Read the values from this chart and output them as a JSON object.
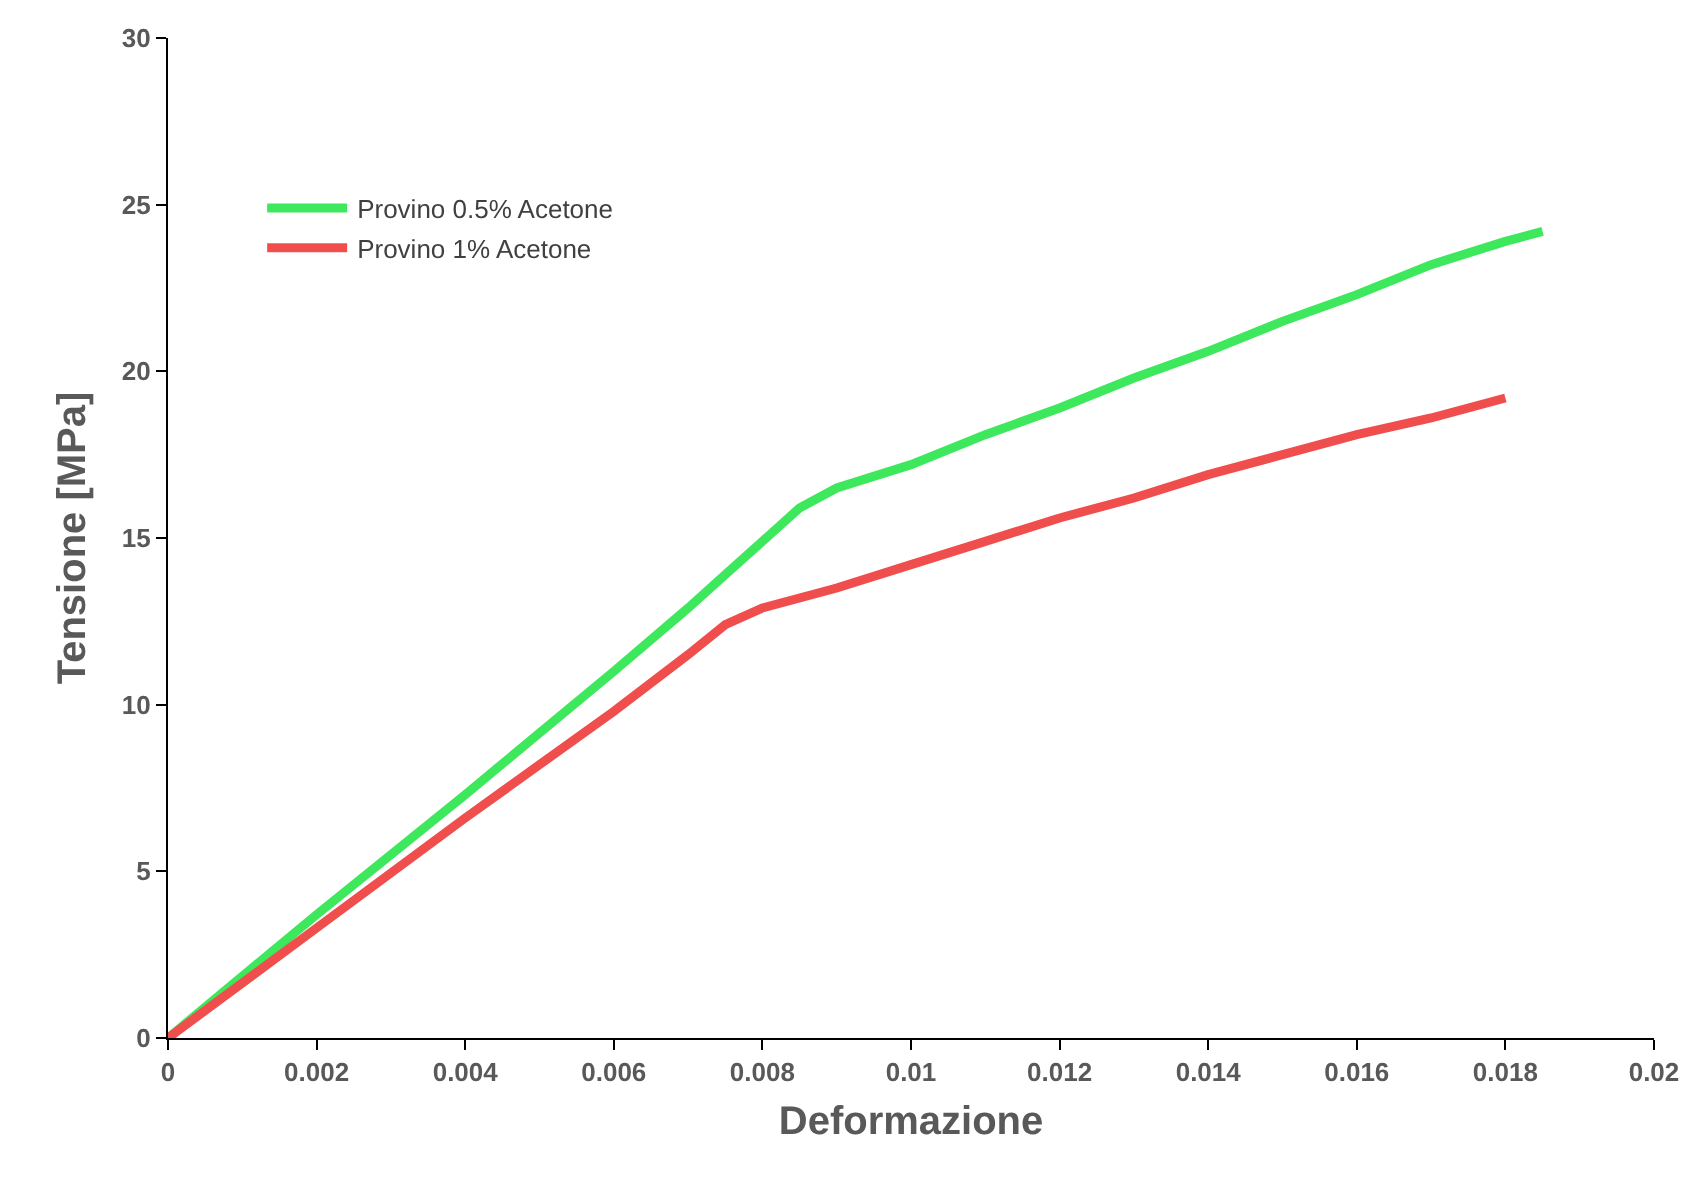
{
  "chart_data": {
    "type": "line",
    "xlabel": "Deformazione",
    "ylabel": "Tensione [MPa]",
    "xlim": [
      0,
      0.02
    ],
    "xticks": [
      0,
      0.002,
      0.004,
      0.006,
      0.008,
      0.01,
      0.012,
      0.014,
      0.016,
      0.018,
      0.02
    ],
    "ylim": [
      0,
      30
    ],
    "yticks": [
      0,
      5,
      10,
      15,
      20,
      25,
      30
    ],
    "grid": false,
    "legend": "top left",
    "marker": "none",
    "line_style": "solid",
    "series": [
      {
        "name": "Provino 0.5% Acetone",
        "color": "#3ee85c",
        "x": [
          0,
          0.002,
          0.004,
          0.006,
          0.007,
          0.0075,
          0.008,
          0.0085,
          0.009,
          0.01,
          0.011,
          0.012,
          0.013,
          0.014,
          0.015,
          0.016,
          0.017,
          0.018,
          0.0185
        ],
        "values": [
          0,
          3.7,
          7.3,
          11.0,
          12.9,
          13.9,
          14.9,
          15.9,
          16.5,
          17.2,
          18.1,
          18.9,
          19.8,
          20.6,
          21.5,
          22.3,
          23.2,
          23.9,
          24.2
        ]
      },
      {
        "name": "Provino 1% Acetone",
        "color": "#f04d4d",
        "x": [
          0,
          0.002,
          0.004,
          0.006,
          0.007,
          0.0075,
          0.008,
          0.009,
          0.01,
          0.011,
          0.012,
          0.013,
          0.014,
          0.015,
          0.016,
          0.017,
          0.018
        ],
        "values": [
          0,
          3.3,
          6.6,
          9.8,
          11.5,
          12.4,
          12.9,
          13.5,
          14.2,
          14.9,
          15.6,
          16.2,
          16.9,
          17.5,
          18.1,
          18.6,
          19.2
        ]
      }
    ]
  }
}
